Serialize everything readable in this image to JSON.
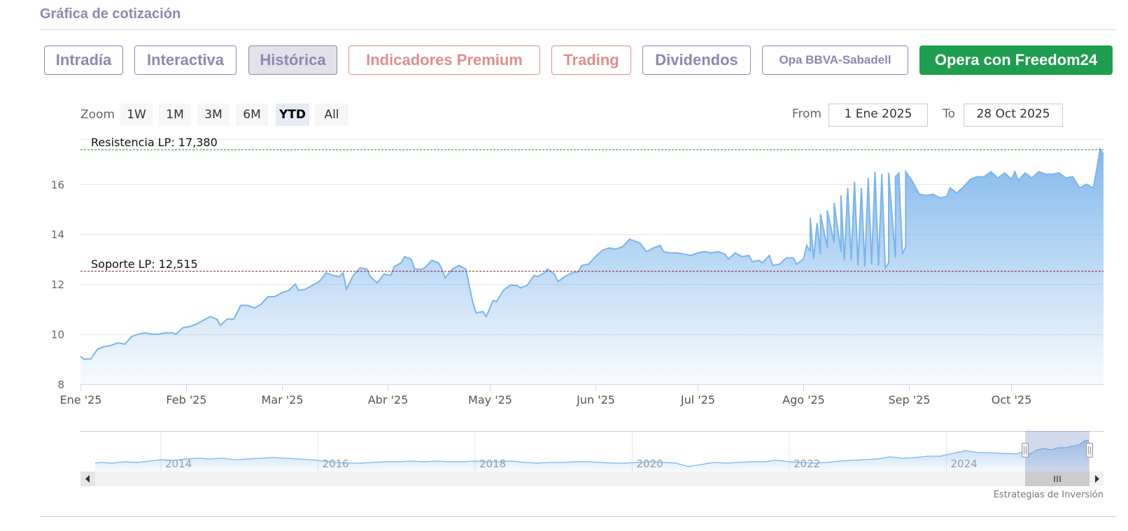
{
  "section": {
    "title": "Gráfica de cotización"
  },
  "tabs": [
    {
      "label": "Intradía",
      "style": "purple"
    },
    {
      "label": "Interactiva",
      "style": "purple"
    },
    {
      "label": "Histórica",
      "style": "active"
    },
    {
      "label": "Indicadores Premium",
      "style": "salmon"
    },
    {
      "label": "Trading",
      "style": "salmon"
    },
    {
      "label": "Dividendos",
      "style": "purple"
    },
    {
      "label": "Opa BBVA-Sabadell",
      "style": "purple small"
    },
    {
      "label": "Opera con Freedom24",
      "style": "green"
    }
  ],
  "range_selector": {
    "zoom_label": "Zoom",
    "buttons": [
      "1W",
      "1M",
      "3M",
      "6M",
      "YTD",
      "All"
    ],
    "selected": "YTD",
    "from_label": "From",
    "from_value": "1 Ene 2025",
    "to_label": "To",
    "to_value": "28 Oct 2025"
  },
  "colors": {
    "series_line": "#7cb5ec",
    "resistance": "#2a8a2a",
    "support": "#8b1a1a",
    "button_selected": "#e6ebf5"
  },
  "credits": "Estrategias de Inversión",
  "chart_data": {
    "type": "area",
    "title": "",
    "xlabel": "",
    "ylabel": "",
    "ylim": [
      8,
      17.8
    ],
    "x_range": [
      "2025-01-01",
      "2025-10-28"
    ],
    "y_ticks": [
      8,
      10,
      12,
      14,
      16
    ],
    "x_ticks": [
      {
        "date": "2025-01-01",
        "label": "Ene '25"
      },
      {
        "date": "2025-02-01",
        "label": "Feb '25"
      },
      {
        "date": "2025-03-01",
        "label": "Mar '25"
      },
      {
        "date": "2025-04-01",
        "label": "Abr '25"
      },
      {
        "date": "2025-05-01",
        "label": "May '25"
      },
      {
        "date": "2025-06-01",
        "label": "Jun '25"
      },
      {
        "date": "2025-07-01",
        "label": "Jul '25"
      },
      {
        "date": "2025-08-01",
        "label": "Ago '25"
      },
      {
        "date": "2025-09-01",
        "label": "Sep '25"
      },
      {
        "date": "2025-10-01",
        "label": "Oct '25"
      }
    ],
    "grid": true,
    "plot_lines": [
      {
        "label": "Resistencia LP: 17,380",
        "value": 17.38,
        "color": "#2a8a2a",
        "dash": true
      },
      {
        "label": "Soporte LP: 12,515",
        "value": 12.515,
        "color": "#8b1a1a",
        "dash": true
      }
    ],
    "series": [
      {
        "points": [
          [
            "2025-01-01",
            9.1
          ],
          [
            "2025-01-02",
            9.0
          ],
          [
            "2025-01-04",
            9.0
          ],
          [
            "2025-01-06",
            9.4
          ],
          [
            "2025-01-08",
            9.5
          ],
          [
            "2025-01-10",
            9.55
          ],
          [
            "2025-01-12",
            9.65
          ],
          [
            "2025-01-14",
            9.6
          ],
          [
            "2025-01-16",
            9.9
          ],
          [
            "2025-01-18",
            10.0
          ],
          [
            "2025-01-20",
            10.05
          ],
          [
            "2025-01-22",
            10.0
          ],
          [
            "2025-01-24",
            10.0
          ],
          [
            "2025-01-26",
            10.05
          ],
          [
            "2025-01-28",
            10.05
          ],
          [
            "2025-01-29",
            10.0
          ],
          [
            "2025-01-31",
            10.25
          ],
          [
            "2025-02-02",
            10.3
          ],
          [
            "2025-02-04",
            10.4
          ],
          [
            "2025-02-06",
            10.55
          ],
          [
            "2025-02-08",
            10.7
          ],
          [
            "2025-02-10",
            10.6
          ],
          [
            "2025-02-11",
            10.35
          ],
          [
            "2025-02-13",
            10.6
          ],
          [
            "2025-02-15",
            10.6
          ],
          [
            "2025-02-17",
            11.15
          ],
          [
            "2025-02-19",
            11.15
          ],
          [
            "2025-02-21",
            11.05
          ],
          [
            "2025-02-23",
            11.2
          ],
          [
            "2025-02-25",
            11.5
          ],
          [
            "2025-02-27",
            11.5
          ],
          [
            "2025-03-01",
            11.65
          ],
          [
            "2025-03-03",
            11.75
          ],
          [
            "2025-03-05",
            12.0
          ],
          [
            "2025-03-06",
            11.75
          ],
          [
            "2025-03-08",
            11.8
          ],
          [
            "2025-03-10",
            11.95
          ],
          [
            "2025-03-12",
            12.1
          ],
          [
            "2025-03-14",
            12.45
          ],
          [
            "2025-03-16",
            12.35
          ],
          [
            "2025-03-18",
            12.3
          ],
          [
            "2025-03-19",
            12.45
          ],
          [
            "2025-03-20",
            11.8
          ],
          [
            "2025-03-22",
            12.35
          ],
          [
            "2025-03-24",
            12.65
          ],
          [
            "2025-03-26",
            12.6
          ],
          [
            "2025-03-27",
            12.3
          ],
          [
            "2025-03-29",
            12.05
          ],
          [
            "2025-03-31",
            12.4
          ],
          [
            "2025-04-02",
            12.35
          ],
          [
            "2025-04-03",
            12.7
          ],
          [
            "2025-04-05",
            12.85
          ],
          [
            "2025-04-06",
            13.1
          ],
          [
            "2025-04-08",
            13.0
          ],
          [
            "2025-04-09",
            12.6
          ],
          [
            "2025-04-11",
            12.6
          ],
          [
            "2025-04-12",
            12.65
          ],
          [
            "2025-04-14",
            12.95
          ],
          [
            "2025-04-16",
            12.85
          ],
          [
            "2025-04-17",
            12.6
          ],
          [
            "2025-04-18",
            12.25
          ],
          [
            "2025-04-20",
            12.6
          ],
          [
            "2025-04-22",
            12.75
          ],
          [
            "2025-04-24",
            12.6
          ],
          [
            "2025-04-26",
            11.3
          ],
          [
            "2025-04-27",
            10.85
          ],
          [
            "2025-04-29",
            10.9
          ],
          [
            "2025-04-30",
            10.7
          ],
          [
            "2025-05-02",
            11.35
          ],
          [
            "2025-05-03",
            11.3
          ],
          [
            "2025-05-05",
            11.75
          ],
          [
            "2025-05-07",
            11.95
          ],
          [
            "2025-05-09",
            11.95
          ],
          [
            "2025-05-10",
            11.85
          ],
          [
            "2025-05-12",
            11.95
          ],
          [
            "2025-05-14",
            12.35
          ],
          [
            "2025-05-15",
            12.3
          ],
          [
            "2025-05-17",
            12.45
          ],
          [
            "2025-05-18",
            12.6
          ],
          [
            "2025-05-20",
            12.4
          ],
          [
            "2025-05-21",
            12.1
          ],
          [
            "2025-05-23",
            12.3
          ],
          [
            "2025-05-25",
            12.45
          ],
          [
            "2025-05-27",
            12.5
          ],
          [
            "2025-05-28",
            12.75
          ],
          [
            "2025-05-30",
            12.8
          ],
          [
            "2025-06-01",
            13.1
          ],
          [
            "2025-06-03",
            13.35
          ],
          [
            "2025-06-05",
            13.45
          ],
          [
            "2025-06-07",
            13.4
          ],
          [
            "2025-06-09",
            13.5
          ],
          [
            "2025-06-11",
            13.8
          ],
          [
            "2025-06-13",
            13.7
          ],
          [
            "2025-06-14",
            13.65
          ],
          [
            "2025-06-16",
            13.3
          ],
          [
            "2025-06-18",
            13.45
          ],
          [
            "2025-06-20",
            13.55
          ],
          [
            "2025-06-21",
            13.3
          ],
          [
            "2025-06-23",
            13.25
          ],
          [
            "2025-06-25",
            13.25
          ],
          [
            "2025-06-27",
            13.2
          ],
          [
            "2025-06-29",
            13.15
          ],
          [
            "2025-07-01",
            13.25
          ],
          [
            "2025-07-03",
            13.3
          ],
          [
            "2025-07-05",
            13.25
          ],
          [
            "2025-07-07",
            13.3
          ],
          [
            "2025-07-09",
            13.2
          ],
          [
            "2025-07-10",
            13.0
          ],
          [
            "2025-07-12",
            13.25
          ],
          [
            "2025-07-14",
            13.1
          ],
          [
            "2025-07-16",
            13.15
          ],
          [
            "2025-07-17",
            12.9
          ],
          [
            "2025-07-19",
            12.95
          ],
          [
            "2025-07-20",
            12.85
          ],
          [
            "2025-07-22",
            13.15
          ],
          [
            "2025-07-23",
            12.75
          ],
          [
            "2025-07-25",
            12.8
          ],
          [
            "2025-07-27",
            13.05
          ],
          [
            "2025-07-29",
            13.05
          ],
          [
            "2025-07-30",
            12.8
          ],
          [
            "2025-08-01",
            13.0
          ],
          [
            "2025-08-03",
            13.3
          ],
          [
            "2025-08-04",
            13.0
          ],
          [
            "2025-08-06",
            13.2
          ],
          [
            "2025-08-08",
            13.45
          ],
          [
            "2025-08-10",
            13.65
          ],
          [
            "2025-08-12",
            13.3
          ],
          [
            "2025-08-13",
            12.95
          ],
          [
            "2025-08-15",
            12.95
          ],
          [
            "2025-08-17",
            12.75
          ],
          [
            "2025-08-19",
            12.7
          ],
          [
            "2025-08-21",
            12.8
          ],
          [
            "2025-08-23",
            12.75
          ],
          [
            "2025-08-25",
            12.65
          ],
          [
            "2025-08-26",
            12.85
          ],
          [
            "2025-08-28",
            13.05
          ],
          [
            "2025-08-30",
            13.2
          ],
          [
            "2025-08-31",
            13.5
          ],
          [
            "2025-08-02",
            13.55
          ],
          [
            "2025-08-03",
            14.65
          ],
          [
            "2025-08-05",
            14.45
          ],
          [
            "2025-08-06",
            14.8
          ],
          [
            "2025-08-08",
            14.95
          ],
          [
            "2025-08-10",
            15.25
          ],
          [
            "2025-08-12",
            15.55
          ],
          [
            "2025-08-14",
            15.85
          ],
          [
            "2025-08-16",
            16.1
          ],
          [
            "2025-08-18",
            15.85
          ],
          [
            "2025-08-20",
            16.25
          ],
          [
            "2025-08-22",
            16.5
          ],
          [
            "2025-08-24",
            16.4
          ],
          [
            "2025-08-26",
            16.45
          ],
          [
            "2025-08-28",
            16.3
          ],
          [
            "2025-08-29",
            16.45
          ],
          [
            "2025-08-31",
            16.5
          ],
          [
            "2025-09-02",
            16.1
          ],
          [
            "2025-09-04",
            15.6
          ],
          [
            "2025-09-06",
            15.55
          ],
          [
            "2025-09-08",
            15.6
          ],
          [
            "2025-09-10",
            15.45
          ],
          [
            "2025-09-12",
            15.5
          ],
          [
            "2025-09-13",
            15.85
          ],
          [
            "2025-09-15",
            15.65
          ],
          [
            "2025-09-17",
            15.9
          ],
          [
            "2025-09-19",
            16.2
          ],
          [
            "2025-09-21",
            16.3
          ],
          [
            "2025-09-23",
            16.3
          ],
          [
            "2025-09-25",
            16.5
          ],
          [
            "2025-09-27",
            16.25
          ],
          [
            "2025-09-29",
            16.45
          ],
          [
            "2025-10-01",
            16.2
          ],
          [
            "2025-10-02",
            16.5
          ],
          [
            "2025-10-03",
            16.15
          ],
          [
            "2025-10-05",
            16.45
          ],
          [
            "2025-10-07",
            16.25
          ],
          [
            "2025-10-09",
            16.5
          ],
          [
            "2025-10-11",
            16.4
          ],
          [
            "2025-10-13",
            16.4
          ],
          [
            "2025-10-15",
            16.45
          ],
          [
            "2025-10-17",
            16.25
          ],
          [
            "2025-10-19",
            16.3
          ],
          [
            "2025-10-21",
            15.85
          ],
          [
            "2025-10-23",
            16.0
          ],
          [
            "2025-10-25",
            15.85
          ],
          [
            "2025-10-26",
            16.6
          ],
          [
            "2025-10-27",
            17.4
          ],
          [
            "2025-10-28",
            17.2
          ]
        ]
      }
    ],
    "navigator": {
      "year_labels": [
        "2014",
        "2016",
        "2018",
        "2020",
        "2022",
        "2024"
      ],
      "selection_start": "2025-01-01",
      "selection_end": "2025-10-28"
    }
  }
}
